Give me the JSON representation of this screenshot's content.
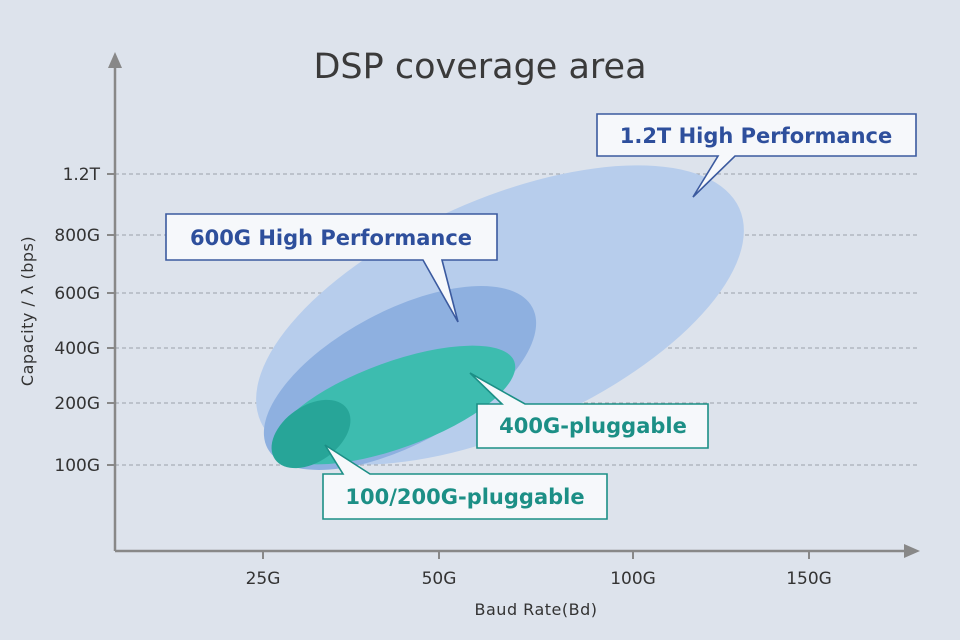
{
  "title": "DSP coverage area",
  "axes": {
    "xlabel": "Baud Rate(Bd)",
    "ylabel": "Capacity / λ (bps)",
    "x_ticks": [
      "25G",
      "50G",
      "100G",
      "150G"
    ],
    "y_ticks": [
      "100G",
      "200G",
      "400G",
      "600G",
      "800G",
      "1.2T"
    ],
    "grid": "horizontal dashed"
  },
  "regions": [
    {
      "id": "1.2t",
      "label": "1.2T High Performance",
      "fill": "#b7cdec",
      "label_color": "#2e4f9c"
    },
    {
      "id": "600g",
      "label": "600G High Performance",
      "fill": "#8eb0e0",
      "label_color": "#2e4f9c"
    },
    {
      "id": "400g-plug",
      "label": "400G-pluggable",
      "fill": "#3dbcaf",
      "label_color": "#1c8f86"
    },
    {
      "id": "100-200g-plug",
      "label": "100/200G-pluggable",
      "fill": "#27a598",
      "label_color": "#1c8f86"
    }
  ],
  "colors": {
    "background": "#dde3ec",
    "axis": "#888888",
    "grid": "#9aa1aa"
  }
}
